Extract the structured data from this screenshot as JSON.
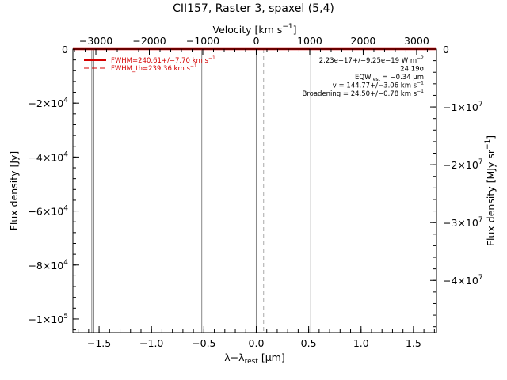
{
  "chart_data": {
    "type": "line",
    "title": "CII157, Raster 3, spaxel (5,4)",
    "xlabel": "λ−λ",
    "xlabel_sub": "rest",
    "xlabel_unit": "[μm]",
    "ylabel": "Flux density [Jy]",
    "y2label": "Flux density [MJy sr",
    "y2label_unit_sup": "−1",
    "y2label_close": "]",
    "top_axis_label": "Velocity [km s",
    "top_axis_label_sup": "−1",
    "top_axis_label_close": "]",
    "xlim": [
      -1.75,
      1.72
    ],
    "ylim": [
      -105000,
      0
    ],
    "x_ticks": [
      {
        "value": -1.5,
        "label": "−1.5"
      },
      {
        "value": -1.0,
        "label": "−1.0"
      },
      {
        "value": -0.5,
        "label": "−0.5"
      },
      {
        "value": 0.0,
        "label": "0.0"
      },
      {
        "value": 0.5,
        "label": "0.5"
      },
      {
        "value": 1.0,
        "label": "1.0"
      },
      {
        "value": 1.5,
        "label": "1.5"
      }
    ],
    "y_ticks": [
      {
        "value": 0,
        "label": "0"
      },
      {
        "value": -20000,
        "mant": "−2×10",
        "exp": "4"
      },
      {
        "value": -40000,
        "mant": "−4×10",
        "exp": "4"
      },
      {
        "value": -60000,
        "mant": "−6×10",
        "exp": "4"
      },
      {
        "value": -80000,
        "mant": "−8×10",
        "exp": "4"
      },
      {
        "value": -100000,
        "mant": "−1×10",
        "exp": "5"
      }
    ],
    "velocity_ticks": [
      {
        "value": -3000,
        "label": "−3000"
      },
      {
        "value": -2000,
        "label": "−2000"
      },
      {
        "value": -1000,
        "label": "−1000"
      },
      {
        "value": 0,
        "label": "0"
      },
      {
        "value": 1000,
        "label": "1000"
      },
      {
        "value": 2000,
        "label": "2000"
      },
      {
        "value": 3000,
        "label": "3000"
      }
    ],
    "y2_ticks": [
      {
        "value": 0,
        "label": "0"
      },
      {
        "value": -10000000,
        "mant": "−1×10",
        "exp": "7"
      },
      {
        "value": -20000000,
        "mant": "−2×10",
        "exp": "7"
      },
      {
        "value": -30000000,
        "mant": "−3×10",
        "exp": "7"
      },
      {
        "value": -40000000,
        "mant": "−4×10",
        "exp": "7"
      }
    ],
    "y2lim": [
      -49000000,
      0
    ],
    "v_lines": [
      {
        "x": -1.57,
        "style": "solid",
        "color": "#888888"
      },
      {
        "x": -1.55,
        "style": "solid",
        "color": "#888888"
      },
      {
        "x": -0.52,
        "style": "solid",
        "color": "#888888"
      },
      {
        "x": 0.0,
        "style": "solid",
        "color": "#888888"
      },
      {
        "x": 0.07,
        "style": "dashed",
        "color": "#aaaaaa"
      },
      {
        "x": 0.52,
        "style": "solid",
        "color": "#888888"
      }
    ],
    "series": [
      {
        "values_y": 0,
        "color": "#d40000",
        "style": "solid"
      }
    ],
    "legend": {
      "placement": "top-left",
      "entries": [
        {
          "text": "FWHM=240.61+/−7.70 km s",
          "sup": "−1",
          "color": "#d40000",
          "style": "solid"
        },
        {
          "text": "FWHM_th=239.36 km s",
          "sup": "−1",
          "color": "#d40000",
          "style": "dashed"
        }
      ]
    },
    "annotations": {
      "placement": "top-right",
      "lines": [
        {
          "text": "2.23e−17+/−9.25e−19 W m",
          "sup": "−2"
        },
        {
          "text": "24.19σ"
        },
        {
          "text": "EQW",
          "sub": "rest",
          "tail": " = −0.34 μm"
        },
        {
          "text": "v = 144.77+/−3.06 km s",
          "sup": "−1"
        },
        {
          "text": "Broadening = 24.50+/−0.78 km s",
          "sup": "−1"
        }
      ]
    }
  }
}
